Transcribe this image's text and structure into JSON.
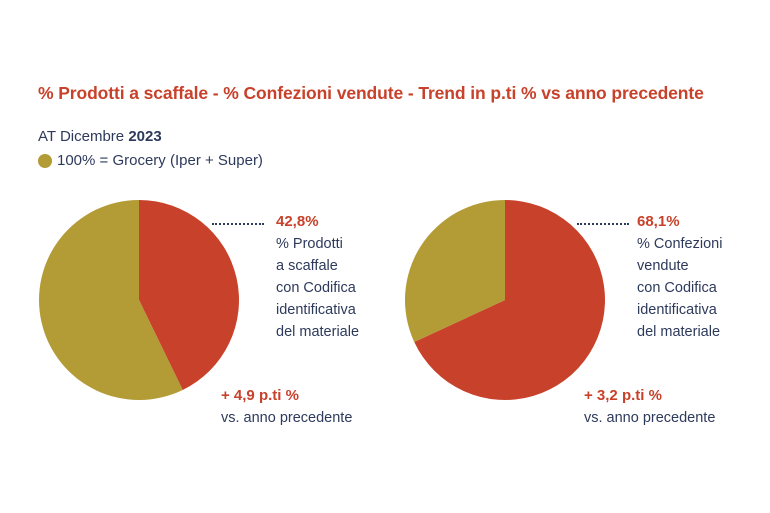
{
  "title": "% Prodotti a scaffale - % Confezioni vendute - Trend in p.ti % vs anno precedente",
  "subtitle": {
    "prefix": "AT Dicembre ",
    "year": "2023"
  },
  "legend": {
    "label": "100% = Grocery (Iper + Super)",
    "color": "#b39b35"
  },
  "colors": {
    "highlight": "#c8412a",
    "rest": "#b39b35",
    "text": "#2e3a5c"
  },
  "chart_data": [
    {
      "type": "pie",
      "slices": [
        {
          "label": "% Prodotti a scaffale con Codifica identificativa del materiale",
          "value": 42.8
        },
        {
          "label": "",
          "value": 57.2
        }
      ],
      "value_label": "42,8%",
      "description_lines": [
        "% Prodotti",
        "a scaffale",
        "con Codifica",
        "identificativa",
        "del materiale"
      ],
      "trend_value": "+ 4,9 p.ti %",
      "trend_label": "vs. anno precedente"
    },
    {
      "type": "pie",
      "slices": [
        {
          "label": "% Confezioni vendute con Codifica identificativa del materiale",
          "value": 68.1
        },
        {
          "label": "",
          "value": 31.9
        }
      ],
      "value_label": "68,1%",
      "description_lines": [
        "% Confezioni",
        "vendute",
        "con Codifica",
        "identificativa",
        "del materiale"
      ],
      "trend_value": "+ 3,2 p.ti %",
      "trend_label": "vs. anno precedente"
    }
  ]
}
